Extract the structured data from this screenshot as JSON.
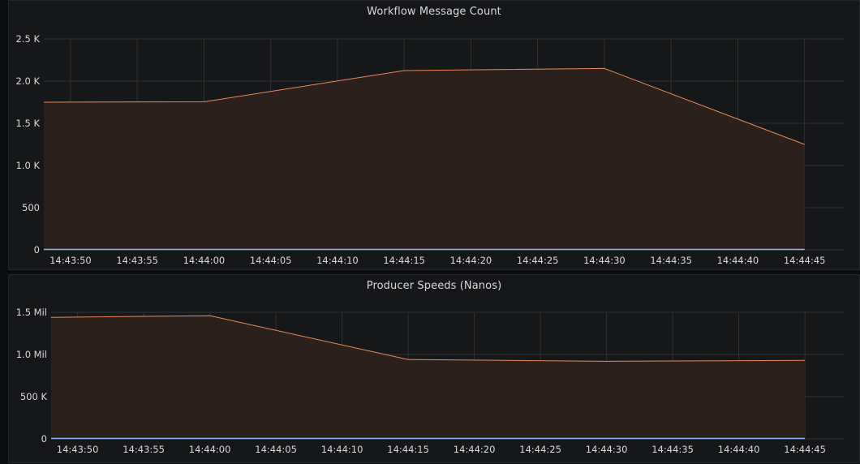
{
  "colors": {
    "background": "#161719",
    "grid": "#464646",
    "series_line": "#e8895a",
    "series_fill": "#2d211d",
    "baseline_series": "#8ab8ff",
    "text": "#d8d9da"
  },
  "chart_data": [
    {
      "type": "area",
      "title": "Workflow Message Count",
      "x": [
        "14:43:48",
        "14:44:00",
        "14:44:15",
        "14:44:30",
        "14:44:45"
      ],
      "x_ticks": [
        "14:43:50",
        "14:43:55",
        "14:44:00",
        "14:44:05",
        "14:44:10",
        "14:44:15",
        "14:44:20",
        "14:44:25",
        "14:44:30",
        "14:44:35",
        "14:44:40",
        "14:44:45"
      ],
      "xlim": [
        "14:43:48",
        "14:44:48"
      ],
      "y_ticks": [
        0,
        500,
        1000,
        1500,
        2000,
        2500
      ],
      "y_tick_labels": [
        "0",
        "500",
        "1.0 K",
        "1.5 K",
        "2.0 K",
        "2.5 K"
      ],
      "ylim": [
        0,
        2500
      ],
      "grid": true,
      "legend": "none",
      "series": [
        {
          "values": [
            1750,
            1755,
            2125,
            2150,
            1250
          ]
        },
        {
          "values": [
            0,
            0,
            0,
            0,
            0
          ]
        }
      ]
    },
    {
      "type": "area",
      "title": "Producer Speeds (Nanos)",
      "x": [
        "14:43:48",
        "14:44:00",
        "14:44:15",
        "14:44:30",
        "14:44:45"
      ],
      "x_ticks": [
        "14:43:50",
        "14:43:55",
        "14:44:00",
        "14:44:05",
        "14:44:10",
        "14:44:15",
        "14:44:20",
        "14:44:25",
        "14:44:30",
        "14:44:35",
        "14:44:40",
        "14:44:45"
      ],
      "xlim": [
        "14:43:48",
        "14:44:48"
      ],
      "y_ticks": [
        0,
        500000,
        1000000,
        1500000
      ],
      "y_tick_labels": [
        "0",
        "500 K",
        "1.0 Mil",
        "1.5 Mil"
      ],
      "ylim": [
        0,
        1500000
      ],
      "grid": true,
      "legend": "none",
      "series": [
        {
          "values": [
            1440000,
            1460000,
            940000,
            920000,
            930000
          ]
        },
        {
          "values": [
            0,
            0,
            0,
            0,
            0
          ]
        }
      ]
    }
  ]
}
